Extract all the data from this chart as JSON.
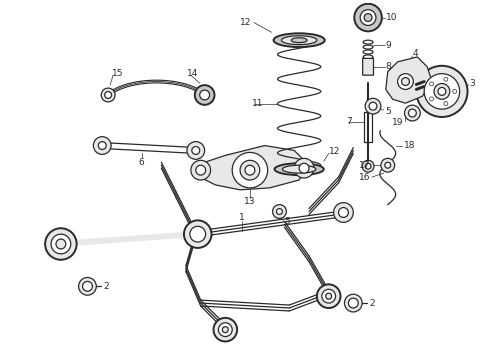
{
  "bg_color": "#ffffff",
  "line_color": "#2a2a2a",
  "fig_width": 4.9,
  "fig_height": 3.6,
  "dpi": 100,
  "lw_main": 0.9,
  "lw_thick": 1.4,
  "gray_fill": "#c8c8c8",
  "light_fill": "#e8e8e8",
  "label_fontsize": 6.5
}
